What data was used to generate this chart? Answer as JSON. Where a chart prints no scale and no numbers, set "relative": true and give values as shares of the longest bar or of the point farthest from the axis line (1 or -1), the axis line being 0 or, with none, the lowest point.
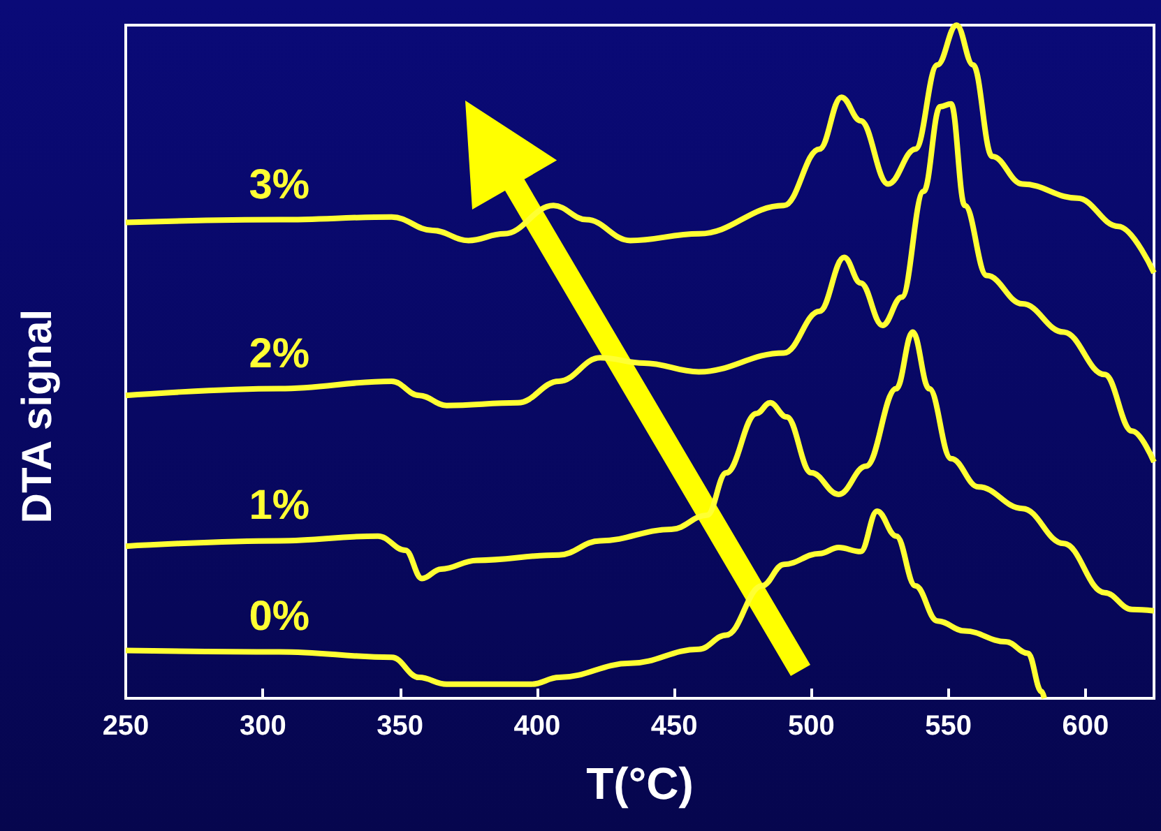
{
  "chart_data": {
    "type": "line",
    "xlabel": "T(°C)",
    "ylabel": "DTA signal",
    "relative": true,
    "xlim": [
      250,
      625
    ],
    "xticks": [
      250,
      300,
      350,
      400,
      450,
      500,
      550,
      600
    ],
    "series": [
      {
        "name": "0%",
        "color": "#ffff33",
        "x": [
          250,
          306,
          347,
          357,
          367,
          398,
          408,
          434,
          459,
          469,
          482,
          490,
          503,
          510,
          518,
          524,
          531,
          538,
          546,
          556,
          571,
          579,
          584,
          585
        ],
        "values": [
          0.071,
          0.069,
          0.061,
          0.031,
          0.021,
          0.021,
          0.031,
          0.052,
          0.073,
          0.094,
          0.167,
          0.199,
          0.215,
          0.224,
          0.218,
          0.278,
          0.241,
          0.167,
          0.115,
          0.1,
          0.084,
          0.067,
          0.01,
          0
        ]
      },
      {
        "name": "1%",
        "color": "#ffff33",
        "x": [
          250,
          306,
          342,
          352,
          358,
          365,
          378,
          408,
          423,
          449,
          462,
          469,
          480,
          485,
          491,
          500,
          510,
          520,
          531,
          537,
          543,
          551,
          561,
          577,
          592,
          607,
          617,
          625
        ],
        "values": [
          0.226,
          0.234,
          0.241,
          0.22,
          0.178,
          0.192,
          0.205,
          0.213,
          0.234,
          0.251,
          0.272,
          0.335,
          0.423,
          0.439,
          0.418,
          0.335,
          0.303,
          0.345,
          0.46,
          0.544,
          0.46,
          0.356,
          0.314,
          0.282,
          0.23,
          0.157,
          0.132,
          0.13
        ]
      },
      {
        "name": "2%",
        "color": "#ffff33",
        "x": [
          250,
          306,
          347,
          357,
          367,
          393,
          408,
          423,
          439,
          459,
          490,
          503,
          512,
          518,
          526,
          533,
          541,
          547,
          551,
          556,
          564,
          577,
          592,
          607,
          617,
          625
        ],
        "values": [
          0.45,
          0.46,
          0.471,
          0.45,
          0.435,
          0.439,
          0.471,
          0.506,
          0.498,
          0.485,
          0.513,
          0.575,
          0.655,
          0.617,
          0.554,
          0.596,
          0.753,
          0.879,
          0.883,
          0.732,
          0.628,
          0.586,
          0.544,
          0.481,
          0.397,
          0.351
        ]
      },
      {
        "name": "3%",
        "color": "#ffff33",
        "x": [
          250,
          306,
          347,
          362,
          375,
          388,
          406,
          418,
          434,
          459,
          490,
          503,
          511,
          518,
          528,
          538,
          546,
          553,
          559,
          566,
          577,
          597,
          612,
          625
        ],
        "values": [
          0.707,
          0.711,
          0.715,
          0.695,
          0.68,
          0.69,
          0.732,
          0.711,
          0.68,
          0.69,
          0.732,
          0.816,
          0.893,
          0.858,
          0.764,
          0.816,
          0.941,
          1,
          0.941,
          0.805,
          0.764,
          0.743,
          0.701,
          0.632
        ]
      }
    ]
  }
}
